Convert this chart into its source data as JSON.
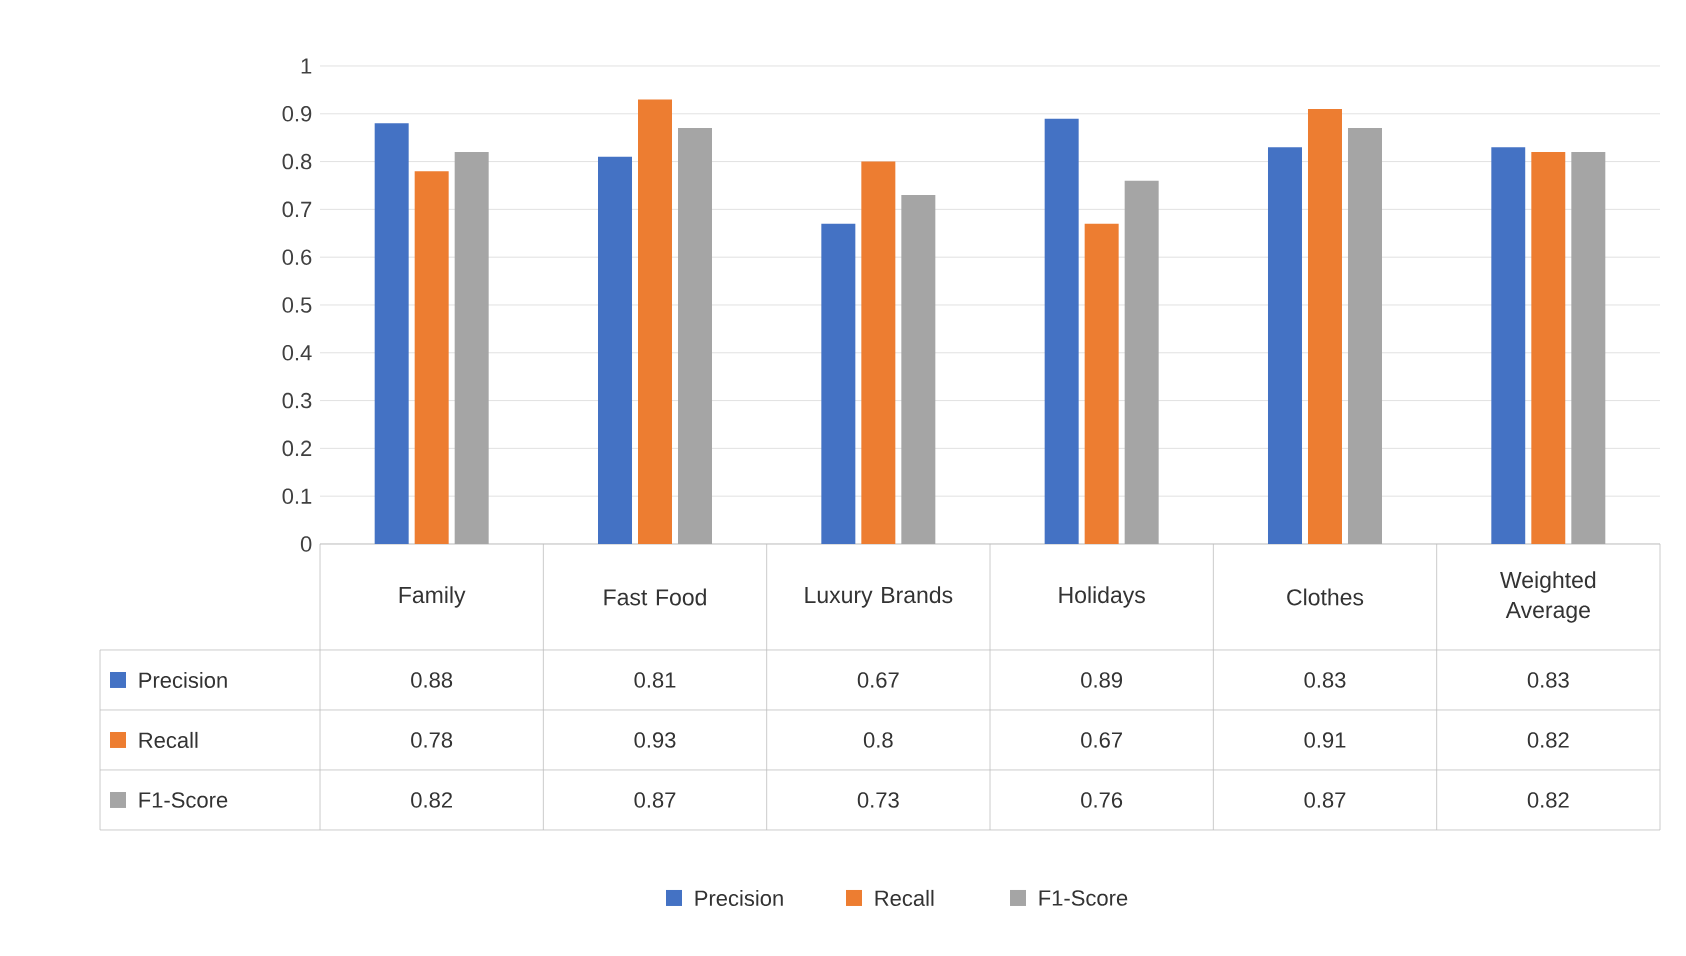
{
  "chart_data": {
    "type": "bar",
    "categories": [
      "Family",
      "Fast Food",
      "Luxury Brands",
      "Holidays",
      "Clothes",
      "Weighted Average"
    ],
    "series": [
      {
        "name": "Precision",
        "color": "#4472c4",
        "values": [
          0.88,
          0.81,
          0.67,
          0.89,
          0.83,
          0.83
        ]
      },
      {
        "name": "Recall",
        "color": "#ed7d31",
        "values": [
          0.78,
          0.93,
          0.8,
          0.67,
          0.91,
          0.82
        ]
      },
      {
        "name": "F1-Score",
        "color": "#a5a5a5",
        "values": [
          0.82,
          0.87,
          0.73,
          0.76,
          0.87,
          0.82
        ]
      }
    ],
    "ylim": [
      0,
      1
    ],
    "yticks": [
      0,
      0.1,
      0.2,
      0.3,
      0.4,
      0.5,
      0.6,
      0.7,
      0.8,
      0.9,
      1
    ],
    "grid": "y",
    "legend": "bottom",
    "data_labels": true
  }
}
